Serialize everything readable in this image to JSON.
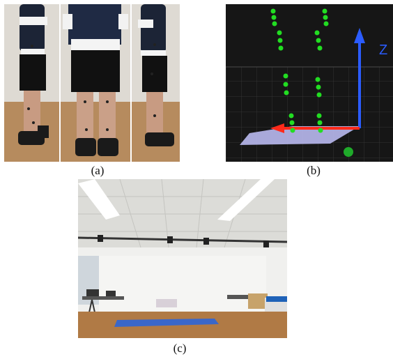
{
  "captions": {
    "a": "(a)",
    "b": "(b)",
    "c": "(c)"
  },
  "panel_b": {
    "axis_label": "Z"
  },
  "colors": {
    "marker_green": "#22dd22",
    "axis_blue": "#2b5cff",
    "axis_red": "#ff2a1a",
    "floor_plate": "#b9b9f0",
    "mat_blue": "#3a67c9"
  }
}
